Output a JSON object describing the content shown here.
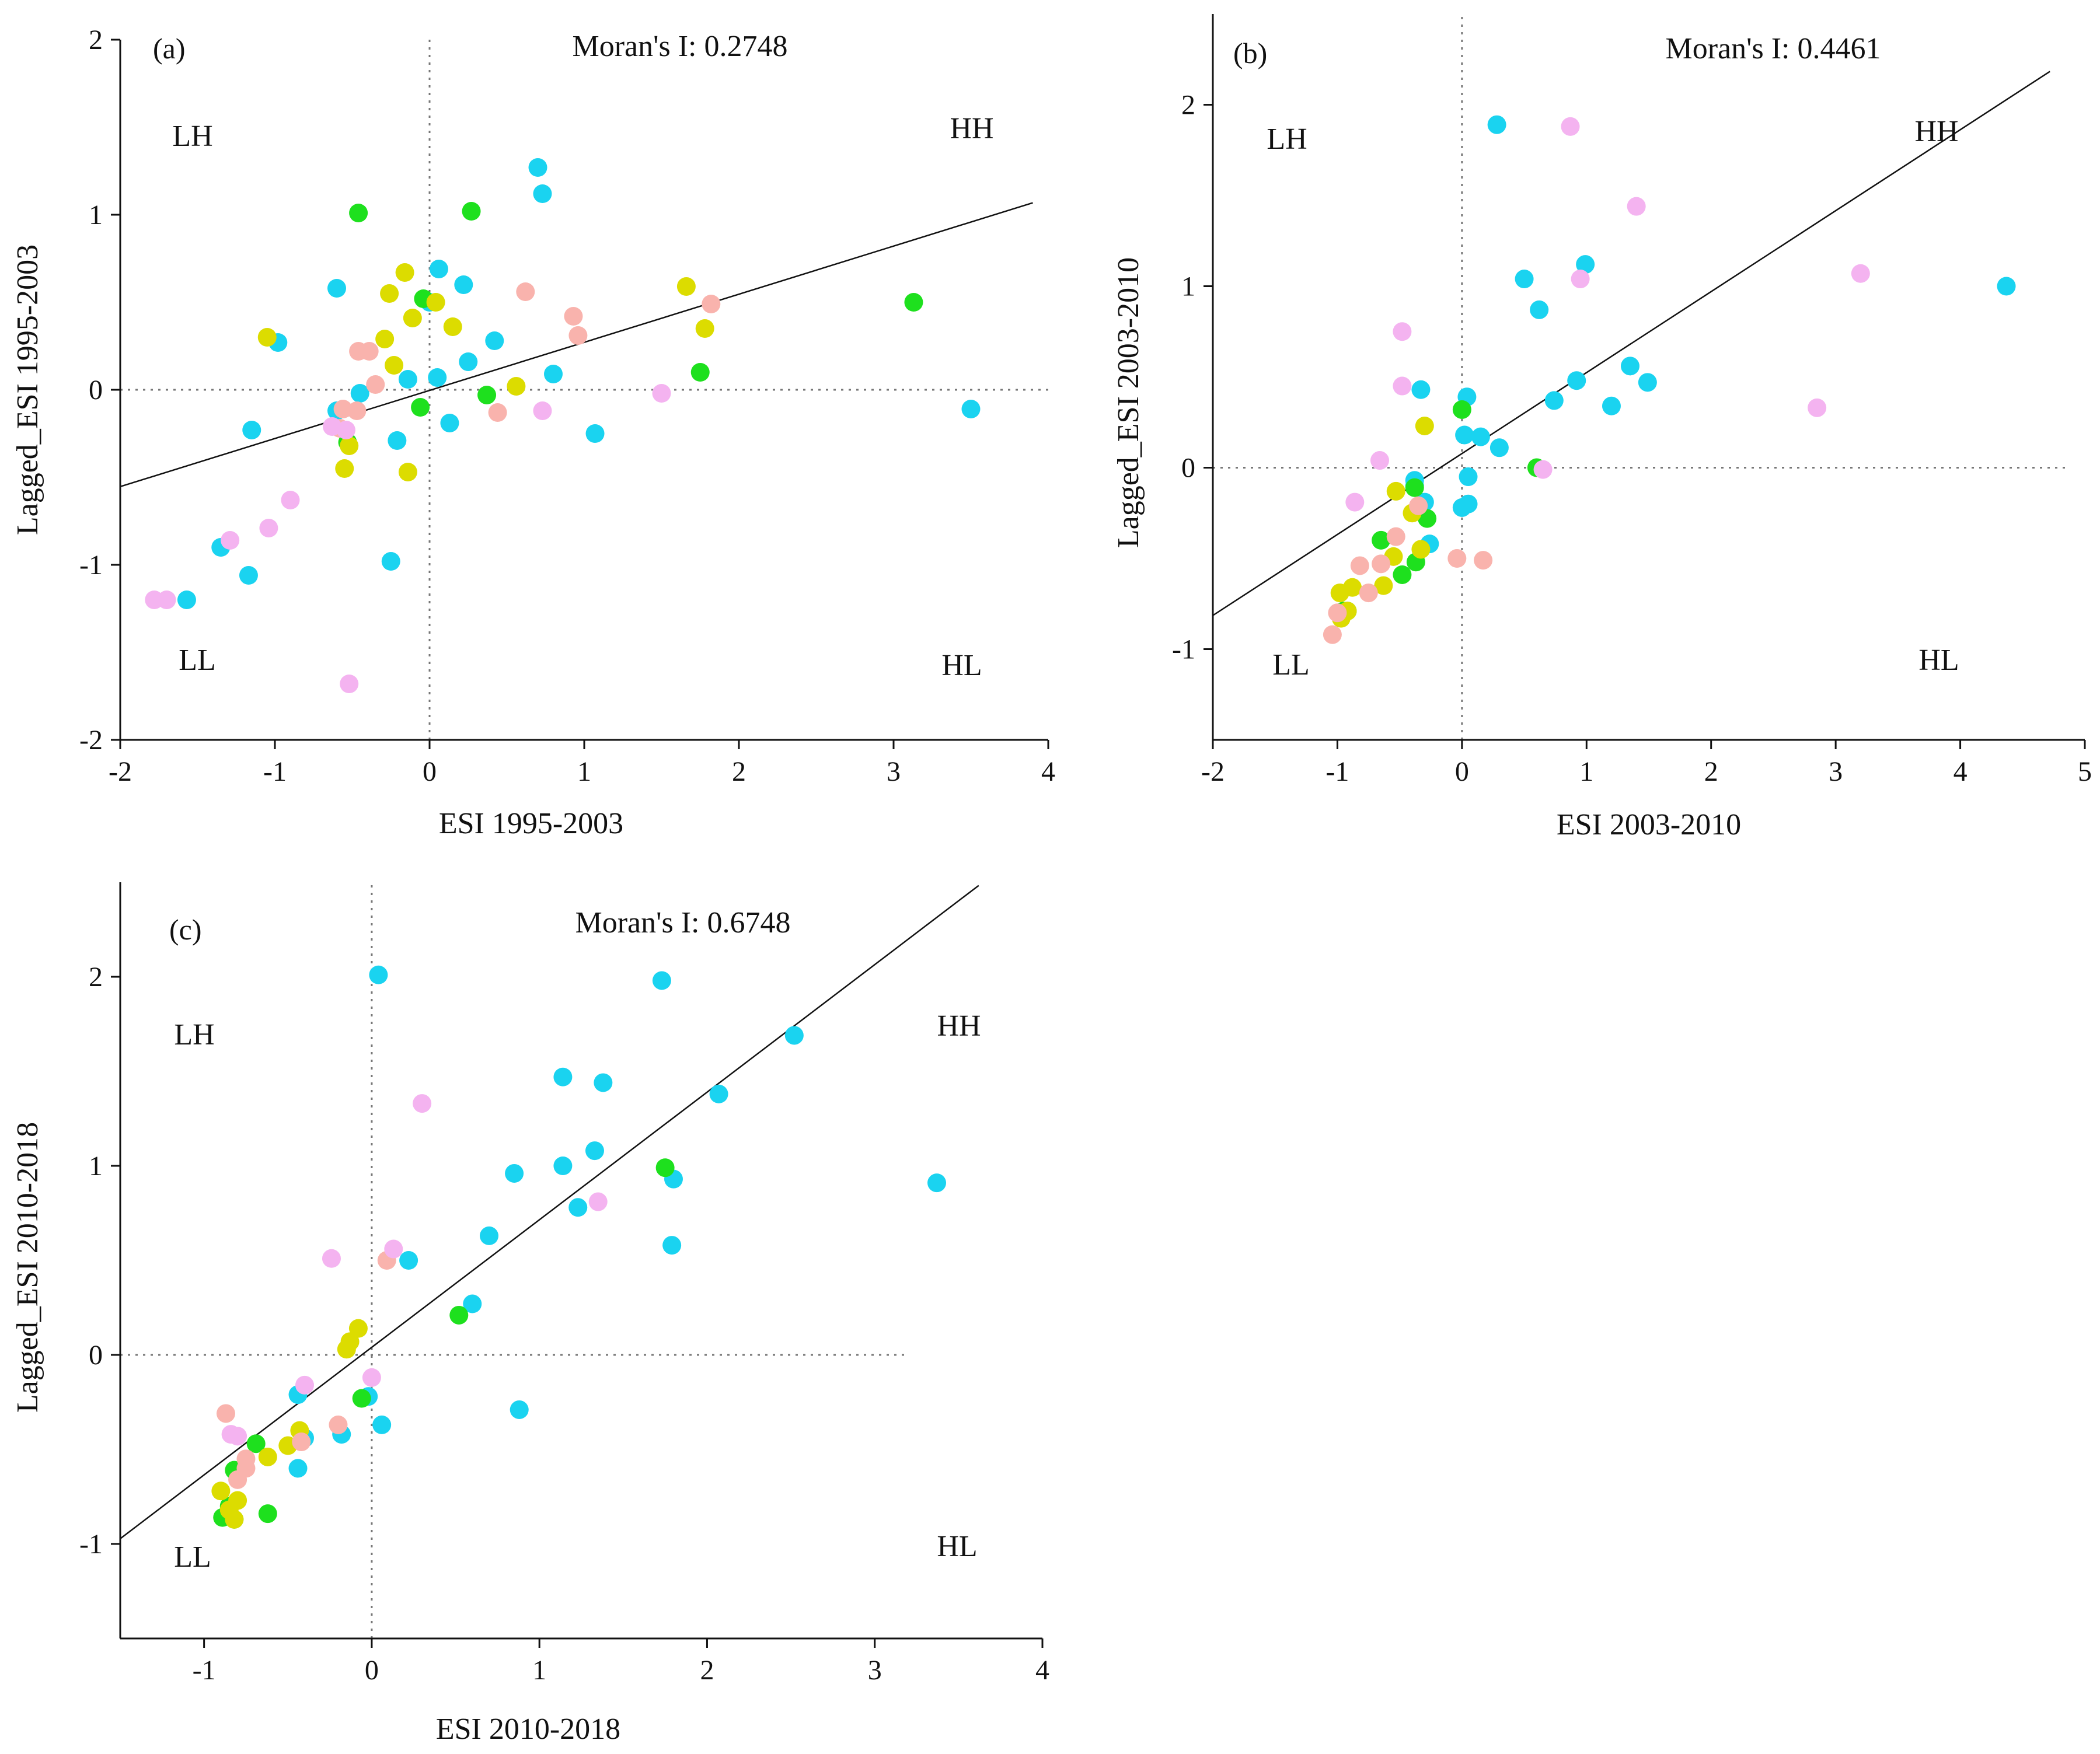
{
  "palette": {
    "blue": "#1ad3f0",
    "green": "#1ee01e",
    "yellow": "#dcdc00",
    "salmon": "#f9b3ad",
    "violet": "#f4b3f0"
  },
  "chart_data": [
    {
      "type": "scatter",
      "panel_label": "(a)",
      "annotation": "Moran's I: 0.2748",
      "xlabel": "ESI 1995-2003",
      "ylabel": "Lagged_ESI 1995-2003",
      "xlim": [
        -2,
        4
      ],
      "ylim": [
        -2,
        2
      ],
      "xticks": [
        -2,
        -1,
        0,
        1,
        2,
        3,
        4
      ],
      "yticks": [
        -2,
        -1,
        0,
        1,
        2
      ],
      "xtick_labels": [
        "-2",
        "-1",
        "0",
        "1",
        "2",
        "3",
        "4"
      ],
      "ytick_labels": [
        "-2",
        "-1",
        "0",
        "1",
        "2"
      ],
      "quadrants": {
        "LH": "LH",
        "HH": "HH",
        "LL": "LL",
        "HL": "HL"
      },
      "regression": {
        "slope": 0.2748,
        "intercept": -0.0036,
        "x_range": [
          -2,
          3.9
        ]
      },
      "ref_x_range": [
        -2,
        4
      ],
      "ref_y_range": [
        -2,
        2
      ],
      "series": [
        {
          "name": "blue",
          "color": "#1ad3f0",
          "points": [
            [
              0.7,
              1.27
            ],
            [
              0.73,
              1.12
            ],
            [
              -0.6,
              0.58
            ],
            [
              0.06,
              0.69
            ],
            [
              0.22,
              0.6
            ],
            [
              -0.98,
              0.27
            ],
            [
              0.0,
              0.5
            ],
            [
              0.42,
              0.28
            ],
            [
              0.25,
              0.16
            ],
            [
              0.05,
              0.07
            ],
            [
              -0.14,
              0.06
            ],
            [
              0.8,
              0.09
            ],
            [
              -0.6,
              -0.12
            ],
            [
              -0.45,
              -0.02
            ],
            [
              -1.15,
              -0.23
            ],
            [
              0.13,
              -0.19
            ],
            [
              1.07,
              -0.25
            ],
            [
              -0.21,
              -0.29
            ],
            [
              3.5,
              -0.11
            ],
            [
              -1.35,
              -0.9
            ],
            [
              -1.17,
              -1.06
            ],
            [
              -0.25,
              -0.98
            ],
            [
              -1.57,
              -1.2
            ]
          ]
        },
        {
          "name": "green",
          "color": "#1ee01e",
          "points": [
            [
              -0.46,
              1.01
            ],
            [
              0.27,
              1.02
            ],
            [
              3.13,
              0.5
            ],
            [
              1.75,
              0.1
            ],
            [
              -0.04,
              0.52
            ],
            [
              0.37,
              -0.03
            ],
            [
              -0.06,
              -0.1
            ],
            [
              -0.53,
              -0.3
            ]
          ]
        },
        {
          "name": "yellow",
          "color": "#dcdc00",
          "points": [
            [
              -1.05,
              0.3
            ],
            [
              -0.16,
              0.67
            ],
            [
              -0.26,
              0.55
            ],
            [
              0.04,
              0.5
            ],
            [
              1.66,
              0.59
            ],
            [
              1.78,
              0.35
            ],
            [
              -0.11,
              0.41
            ],
            [
              0.15,
              0.36
            ],
            [
              -0.29,
              0.29
            ],
            [
              -0.23,
              0.14
            ],
            [
              0.56,
              0.02
            ],
            [
              -0.55,
              -0.45
            ],
            [
              -0.52,
              -0.32
            ],
            [
              -0.14,
              -0.47
            ]
          ]
        },
        {
          "name": "salmon",
          "color": "#f9b3ad",
          "points": [
            [
              0.62,
              0.56
            ],
            [
              1.82,
              0.49
            ],
            [
              0.93,
              0.42
            ],
            [
              0.96,
              0.31
            ],
            [
              -0.46,
              0.22
            ],
            [
              -0.39,
              0.22
            ],
            [
              -0.35,
              0.03
            ],
            [
              -0.47,
              -0.12
            ],
            [
              -0.56,
              -0.11
            ],
            [
              0.44,
              -0.13
            ],
            [
              -0.58,
              -0.22
            ]
          ]
        },
        {
          "name": "violet",
          "color": "#f4b3f0",
          "points": [
            [
              1.5,
              -0.02
            ],
            [
              0.73,
              -0.12
            ],
            [
              -0.63,
              -0.21
            ],
            [
              -0.54,
              -0.23
            ],
            [
              -0.9,
              -0.63
            ],
            [
              -1.04,
              -0.79
            ],
            [
              -1.29,
              -0.86
            ],
            [
              -1.78,
              -1.2
            ],
            [
              -1.7,
              -1.2
            ],
            [
              -0.52,
              -1.68
            ]
          ]
        }
      ]
    },
    {
      "type": "scatter",
      "panel_label": "(b)",
      "annotation": "Moran's I: 0.4461",
      "xlabel": "ESI 2003-2010",
      "ylabel": "Lagged_ESI 2003-2010",
      "xlim": [
        -2,
        5
      ],
      "ylim": [
        -1.5,
        2.5
      ],
      "xticks": [
        -2,
        -1,
        0,
        1,
        2,
        3,
        4,
        5
      ],
      "yticks": [
        -1,
        0,
        1,
        2
      ],
      "xtick_labels": [
        "-2",
        "-1",
        "0",
        "1",
        "2",
        "3",
        "4",
        "5"
      ],
      "ytick_labels": [
        "-1",
        "0",
        "1",
        "2"
      ],
      "quadrants": {
        "LH": "LH",
        "HH": "HH",
        "LL": "LL",
        "HL": "HL"
      },
      "regression": {
        "slope": 0.4461,
        "intercept": 0.0779,
        "x_range": [
          -2,
          4.72
        ]
      },
      "ref_x_range": [
        -2,
        4.85
      ],
      "ref_y_range": [
        -1.5,
        2.5
      ],
      "series": [
        {
          "name": "blue",
          "color": "#1ad3f0",
          "points": [
            [
              0.28,
              1.89
            ],
            [
              0.99,
              1.12
            ],
            [
              0.5,
              1.04
            ],
            [
              0.62,
              0.87
            ],
            [
              4.37,
              1.0
            ],
            [
              1.35,
              0.56
            ],
            [
              1.49,
              0.47
            ],
            [
              0.92,
              0.48
            ],
            [
              0.74,
              0.37
            ],
            [
              1.2,
              0.34
            ],
            [
              0.04,
              0.39
            ],
            [
              -0.33,
              0.43
            ],
            [
              0.02,
              0.18
            ],
            [
              0.15,
              0.17
            ],
            [
              0.3,
              0.11
            ],
            [
              0.05,
              -0.05
            ],
            [
              0.05,
              -0.2
            ],
            [
              0.0,
              -0.22
            ],
            [
              -0.38,
              -0.07
            ],
            [
              -0.38,
              -0.1
            ],
            [
              -0.3,
              -0.19
            ],
            [
              -0.26,
              -0.42
            ]
          ]
        },
        {
          "name": "green",
          "color": "#1ee01e",
          "points": [
            [
              0.0,
              0.32
            ],
            [
              0.6,
              0.0
            ],
            [
              -0.38,
              -0.11
            ],
            [
              -0.28,
              -0.28
            ],
            [
              -0.65,
              -0.4
            ],
            [
              -0.37,
              -0.52
            ],
            [
              -0.48,
              -0.59
            ],
            [
              -0.95,
              -0.79
            ],
            [
              -0.92,
              -0.79
            ]
          ]
        },
        {
          "name": "yellow",
          "color": "#dcdc00",
          "points": [
            [
              -0.3,
              0.23
            ],
            [
              -0.53,
              -0.13
            ],
            [
              -0.4,
              -0.25
            ],
            [
              -0.33,
              -0.45
            ],
            [
              -0.55,
              -0.49
            ],
            [
              -0.63,
              -0.65
            ],
            [
              -0.88,
              -0.66
            ],
            [
              -0.98,
              -0.69
            ],
            [
              -0.92,
              -0.79
            ],
            [
              -0.97,
              -0.83
            ]
          ]
        },
        {
          "name": "salmon",
          "color": "#f9b3ad",
          "points": [
            [
              -0.04,
              -0.5
            ],
            [
              0.17,
              -0.51
            ],
            [
              -0.35,
              -0.21
            ],
            [
              -0.53,
              -0.38
            ],
            [
              -0.65,
              -0.53
            ],
            [
              -0.82,
              -0.54
            ],
            [
              -0.75,
              -0.69
            ],
            [
              -1.0,
              -0.8
            ],
            [
              -1.04,
              -0.92
            ]
          ]
        },
        {
          "name": "violet",
          "color": "#f4b3f0",
          "points": [
            [
              0.87,
              1.88
            ],
            [
              1.4,
              1.44
            ],
            [
              0.95,
              1.04
            ],
            [
              3.2,
              1.07
            ],
            [
              2.85,
              0.33
            ],
            [
              -0.48,
              0.75
            ],
            [
              -0.48,
              0.45
            ],
            [
              -0.66,
              0.04
            ],
            [
              0.65,
              -0.01
            ],
            [
              -0.86,
              -0.19
            ]
          ]
        }
      ]
    },
    {
      "type": "scatter",
      "panel_label": "(c)",
      "annotation": "Moran's I: 0.6748",
      "xlabel": "ESI 2010-2018",
      "ylabel": "Lagged_ESI 2010-2018",
      "xlim": [
        -1.5,
        4
      ],
      "ylim": [
        -1.5,
        2.5
      ],
      "xticks": [
        -1,
        0,
        1,
        2,
        3,
        4
      ],
      "yticks": [
        -1,
        0,
        1,
        2
      ],
      "xtick_labels": [
        "-1",
        "0",
        "1",
        "2",
        "3",
        "4"
      ],
      "ytick_labels": [
        "-1",
        "0",
        "1",
        "2"
      ],
      "quadrants": {
        "LH": "LH",
        "HH": "HH",
        "LL": "LL",
        "HL": "HL"
      },
      "regression": {
        "slope": 0.6748,
        "intercept": 0.04,
        "x_range": [
          -1.5,
          3.62
        ]
      },
      "ref_x_range": [
        -1.5,
        3.2
      ],
      "ref_y_range": [
        -1.5,
        2.5
      ],
      "series": [
        {
          "name": "blue",
          "color": "#1ad3f0",
          "points": [
            [
              0.04,
              2.01
            ],
            [
              1.73,
              1.98
            ],
            [
              2.52,
              1.69
            ],
            [
              1.14,
              1.47
            ],
            [
              1.38,
              1.44
            ],
            [
              2.07,
              1.38
            ],
            [
              1.33,
              1.08
            ],
            [
              1.14,
              1.0
            ],
            [
              0.85,
              0.96
            ],
            [
              1.8,
              0.93
            ],
            [
              3.37,
              0.91
            ],
            [
              1.23,
              0.78
            ],
            [
              0.7,
              0.63
            ],
            [
              1.79,
              0.58
            ],
            [
              0.22,
              0.5
            ],
            [
              0.6,
              0.27
            ],
            [
              -0.44,
              -0.21
            ],
            [
              -0.02,
              -0.22
            ],
            [
              0.88,
              -0.29
            ],
            [
              -0.4,
              -0.44
            ],
            [
              -0.18,
              -0.42
            ],
            [
              0.06,
              -0.37
            ],
            [
              -0.44,
              -0.6
            ]
          ]
        },
        {
          "name": "green",
          "color": "#1ee01e",
          "points": [
            [
              1.75,
              0.99
            ],
            [
              0.52,
              0.21
            ],
            [
              -0.06,
              -0.23
            ],
            [
              -0.69,
              -0.47
            ],
            [
              -0.82,
              -0.61
            ],
            [
              -0.85,
              -0.8
            ],
            [
              -0.89,
              -0.86
            ],
            [
              -0.82,
              -0.87
            ],
            [
              -0.62,
              -0.84
            ]
          ]
        },
        {
          "name": "yellow",
          "color": "#dcdc00",
          "points": [
            [
              -0.08,
              0.14
            ],
            [
              -0.15,
              0.03
            ],
            [
              -0.13,
              0.07
            ],
            [
              -0.43,
              -0.4
            ],
            [
              -0.5,
              -0.48
            ],
            [
              -0.62,
              -0.54
            ],
            [
              -0.9,
              -0.72
            ],
            [
              -0.8,
              -0.77
            ],
            [
              -0.85,
              -0.82
            ],
            [
              -0.82,
              -0.87
            ]
          ]
        },
        {
          "name": "salmon",
          "color": "#f9b3ad",
          "points": [
            [
              0.09,
              0.5
            ],
            [
              -0.87,
              -0.31
            ],
            [
              -0.2,
              -0.37
            ],
            [
              -0.42,
              -0.46
            ],
            [
              -0.75,
              -0.55
            ],
            [
              -0.75,
              -0.6
            ],
            [
              -0.8,
              -0.66
            ]
          ]
        },
        {
          "name": "violet",
          "color": "#f4b3f0",
          "points": [
            [
              0.3,
              1.33
            ],
            [
              1.35,
              0.81
            ],
            [
              0.13,
              0.56
            ],
            [
              -0.24,
              0.51
            ],
            [
              -0.4,
              -0.16
            ],
            [
              0.0,
              -0.12
            ],
            [
              -0.84,
              -0.42
            ],
            [
              -0.8,
              -0.43
            ]
          ]
        }
      ]
    }
  ]
}
